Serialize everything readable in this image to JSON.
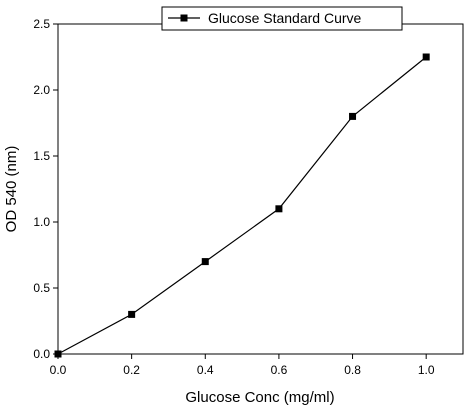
{
  "chart_data": {
    "type": "line",
    "xlabel": "Glucose Conc (mg/ml)",
    "ylabel": "OD 540 (nm)",
    "xlim": [
      0.0,
      1.1
    ],
    "ylim": [
      0.0,
      2.5
    ],
    "x_ticks": [
      "0.0",
      "0.2",
      "0.4",
      "0.6",
      "0.8",
      "1.0"
    ],
    "y_ticks": [
      "0.0",
      "0.5",
      "1.0",
      "1.5",
      "2.0",
      "2.5"
    ],
    "grid": false,
    "legend_position": "top-right",
    "series": [
      {
        "name": "Glucose Standard Curve",
        "marker": "square",
        "color": "#000000",
        "x": [
          0.0,
          0.2,
          0.4,
          0.6,
          0.8,
          1.0
        ],
        "y": [
          0.0,
          0.3,
          0.7,
          1.1,
          1.8,
          2.25
        ]
      }
    ]
  }
}
